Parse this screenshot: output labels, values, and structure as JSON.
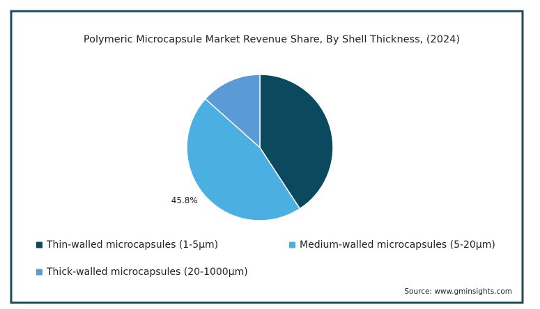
{
  "chart_data": {
    "type": "pie",
    "title": "Polymeric Microcapsule Market Revenue Share, By Shell Thickness, (2024)",
    "categories": [
      "Thin-walled microcapsules (1-5µm)",
      "Medium-walled microcapsules (5-20µm)",
      "Thick-walled microcapsules (20-1000µm)"
    ],
    "values": [
      40.8,
      45.8,
      13.4
    ],
    "value_labels": [
      null,
      "45.8%",
      null
    ],
    "colors": [
      "#0b4a5e",
      "#4bafe1",
      "#5b9bd5"
    ],
    "source": "Source: www.gminsights.com"
  }
}
